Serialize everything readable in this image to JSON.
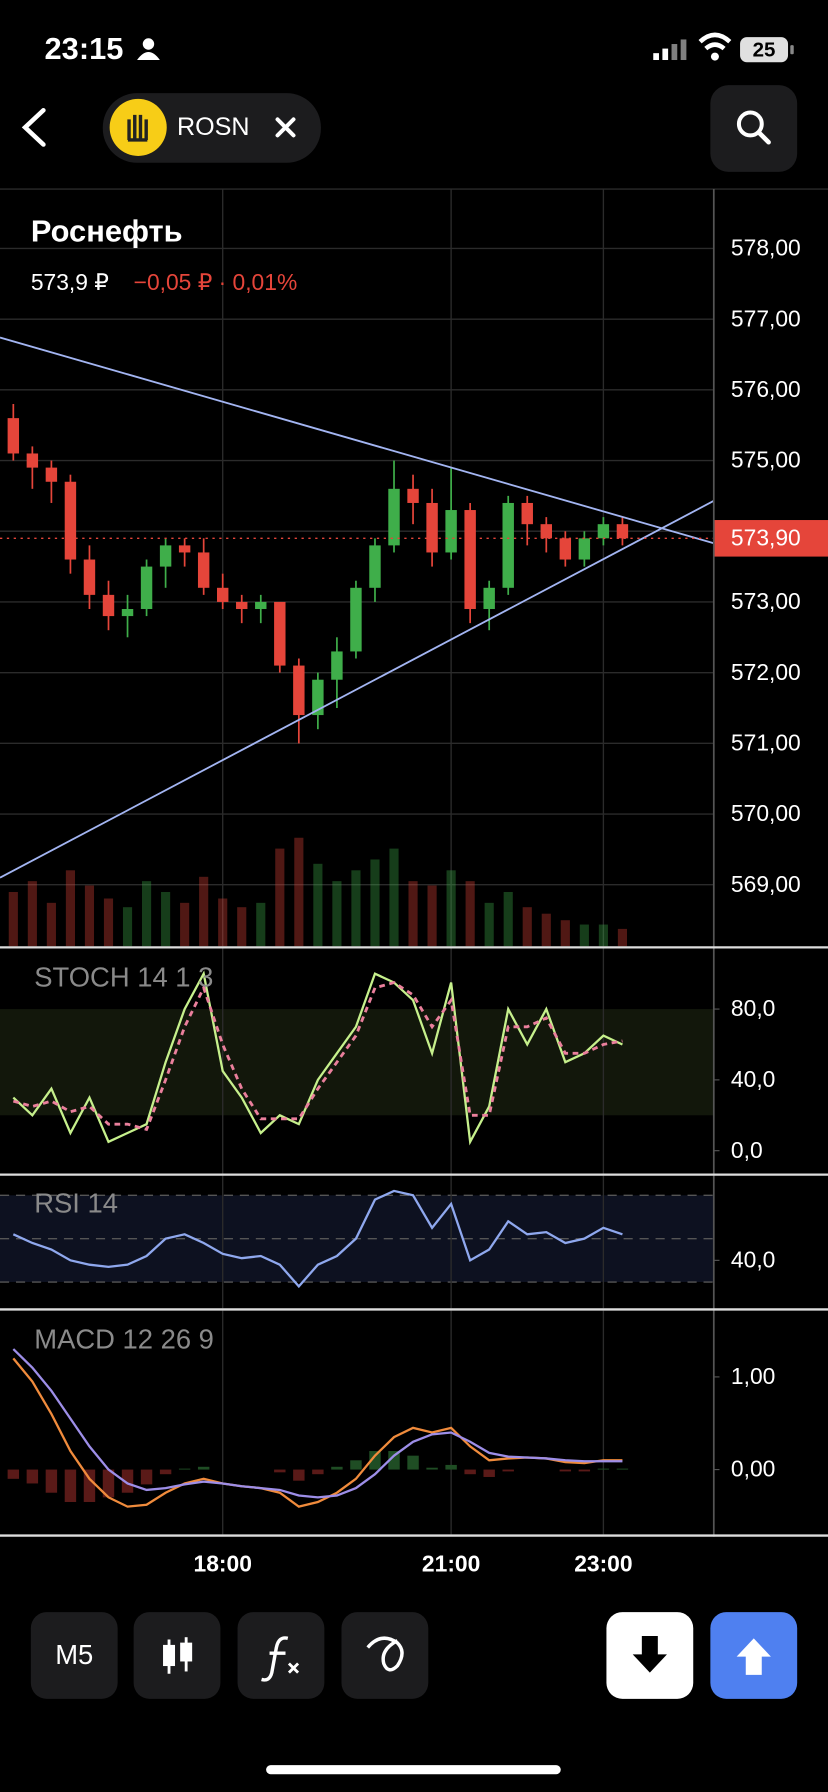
{
  "status_bar": {
    "time": "23:15",
    "battery": "25"
  },
  "header": {
    "ticker": "ROSN"
  },
  "chart_data": [
    {
      "type": "candlestick",
      "title": "Роснефть",
      "price_text": "573,9 ₽",
      "change_text": "−0,05 ₽ · 0,01%",
      "x": [
        15.25,
        15.5,
        15.75,
        16,
        16.25,
        16.5,
        16.75,
        17,
        17.25,
        17.5,
        17.75,
        18,
        18.25,
        18.5,
        18.75,
        19,
        19.25,
        19.5,
        19.75,
        20,
        20.25,
        20.5,
        20.75,
        21,
        21.25,
        21.5,
        21.75,
        22,
        22.25,
        22.5,
        22.75,
        23,
        23.25
      ],
      "open": [
        575.6,
        575.1,
        574.9,
        574.7,
        573.6,
        573.1,
        572.8,
        572.9,
        573.5,
        573.8,
        573.7,
        573.2,
        573.0,
        572.9,
        573.0,
        572.1,
        571.4,
        571.9,
        572.3,
        573.2,
        573.8,
        574.6,
        574.4,
        573.7,
        574.3,
        572.9,
        573.2,
        574.4,
        574.1,
        573.9,
        573.6,
        573.9,
        574.1
      ],
      "high": [
        575.8,
        575.2,
        575.0,
        574.8,
        573.8,
        573.3,
        573.1,
        573.6,
        573.9,
        573.9,
        573.9,
        573.4,
        573.1,
        573.1,
        573.0,
        572.2,
        572.0,
        572.5,
        573.3,
        573.9,
        575.0,
        574.8,
        574.6,
        574.9,
        574.4,
        573.3,
        574.5,
        574.5,
        574.2,
        574.0,
        574.0,
        574.2,
        574.2
      ],
      "low": [
        575.0,
        574.6,
        574.4,
        573.4,
        572.9,
        572.6,
        572.5,
        572.8,
        573.2,
        573.5,
        573.1,
        572.9,
        572.7,
        572.7,
        572.0,
        571.0,
        571.2,
        571.5,
        572.2,
        573.0,
        573.7,
        574.1,
        573.5,
        573.6,
        572.7,
        572.6,
        573.1,
        573.8,
        573.7,
        573.5,
        573.5,
        573.8,
        573.8
      ],
      "close": [
        575.1,
        574.9,
        574.7,
        573.6,
        573.1,
        572.8,
        572.9,
        573.5,
        573.8,
        573.7,
        573.2,
        573.0,
        572.9,
        573.0,
        572.1,
        571.4,
        571.9,
        572.3,
        573.2,
        573.8,
        574.6,
        574.4,
        573.7,
        574.3,
        572.9,
        573.2,
        574.4,
        574.1,
        573.9,
        573.6,
        573.9,
        574.1,
        573.9
      ],
      "volume": [
        25,
        30,
        20,
        35,
        28,
        22,
        18,
        30,
        25,
        20,
        32,
        22,
        18,
        20,
        45,
        50,
        38,
        30,
        35,
        40,
        45,
        30,
        28,
        35,
        30,
        20,
        25,
        18,
        15,
        12,
        10,
        10,
        8
      ],
      "up_color": "#3fae4a",
      "down_color": "#e5453a",
      "xlim": [
        15.075,
        24.45
      ],
      "ylim": [
        568.13,
        578.84
      ],
      "yticks": [
        {
          "value": 569,
          "label": "569,00"
        },
        {
          "value": 570,
          "label": "570,00"
        },
        {
          "value": 571,
          "label": "571,00"
        },
        {
          "value": 572,
          "label": "572,00"
        },
        {
          "value": 573,
          "label": "573,00"
        },
        {
          "value": 574,
          "label": "574,00"
        },
        {
          "value": 575,
          "label": "575,00"
        },
        {
          "value": 576,
          "label": "576,00"
        },
        {
          "value": 577,
          "label": "577,00"
        },
        {
          "value": 578,
          "label": "578,00"
        }
      ],
      "last_price": {
        "value": 573.9,
        "label": "573,90"
      },
      "trendlines": [
        {
          "color": "#a3b5f2",
          "x": [
            15.075,
            24.45
          ],
          "values": [
            576.74,
            573.83
          ]
        },
        {
          "color": "#a3b5f2",
          "x": [
            15.075,
            24.45
          ],
          "values": [
            569.1,
            574.43
          ]
        }
      ],
      "grid": true
    },
    {
      "type": "line",
      "title": "STOCH 14 1 3",
      "x": [
        15.25,
        15.5,
        15.75,
        16,
        16.25,
        16.5,
        16.75,
        17,
        17.25,
        17.5,
        17.75,
        18,
        18.25,
        18.5,
        18.75,
        19,
        19.25,
        19.5,
        19.75,
        20,
        20.25,
        20.5,
        20.75,
        21,
        21.25,
        21.5,
        21.75,
        22,
        22.25,
        22.5,
        22.75,
        23,
        23.25
      ],
      "series": [
        {
          "color": "#c6f08c",
          "values": [
            30,
            20,
            35,
            10,
            30,
            5,
            10,
            15,
            50,
            80,
            100,
            45,
            30,
            10,
            20,
            15,
            40,
            55,
            70,
            100,
            95,
            85,
            55,
            95,
            5,
            25,
            80,
            60,
            80,
            50,
            55,
            65,
            60
          ]
        },
        {
          "color": "#ea7f9c",
          "dash": true,
          "values": [
            28,
            25,
            28,
            22,
            25,
            15,
            15,
            12,
            40,
            70,
            92,
            60,
            35,
            18,
            18,
            18,
            35,
            50,
            65,
            92,
            95,
            88,
            70,
            85,
            20,
            20,
            70,
            70,
            75,
            55,
            55,
            60,
            62
          ]
        }
      ],
      "band": [
        20,
        80
      ],
      "band_color": "#12170b",
      "xlim": [
        15.075,
        24.45
      ],
      "ylim": [
        -12.9,
        114.2
      ],
      "yticks": [
        {
          "value": 0,
          "label": "0,0"
        },
        {
          "value": 40,
          "label": "40,0"
        },
        {
          "value": 80,
          "label": "80,0"
        }
      ]
    },
    {
      "type": "line",
      "title": "RSI 14",
      "x": [
        15.25,
        15.5,
        15.75,
        16,
        16.25,
        16.5,
        16.75,
        17,
        17.25,
        17.5,
        17.75,
        18,
        18.25,
        18.5,
        18.75,
        19,
        19.25,
        19.5,
        19.75,
        20,
        20.25,
        20.5,
        20.75,
        21,
        21.25,
        21.5,
        21.75,
        22,
        22.25,
        22.5,
        22.75,
        23,
        23.25
      ],
      "series": [
        {
          "color": "#8fa8ee",
          "values": [
            52,
            48,
            45,
            40,
            38,
            37,
            38,
            42,
            50,
            52,
            48,
            43,
            41,
            42,
            38,
            28,
            38,
            42,
            50,
            68,
            72,
            70,
            55,
            66,
            40,
            45,
            58,
            52,
            53,
            48,
            50,
            55,
            52
          ]
        }
      ],
      "band": [
        30,
        70
      ],
      "band_color": "#0d1120",
      "levels": [
        30,
        50,
        70
      ],
      "xlim": [
        15.075,
        24.45
      ],
      "ylim": [
        17.9,
        79.5
      ],
      "yticks": [
        {
          "value": 40,
          "label": "40,0"
        }
      ]
    },
    {
      "type": "line",
      "title": "MACD 12 26 9",
      "x": [
        15.25,
        15.5,
        15.75,
        16,
        16.25,
        16.5,
        16.75,
        17,
        17.25,
        17.5,
        17.75,
        18,
        18.25,
        18.5,
        18.75,
        19,
        19.25,
        19.5,
        19.75,
        20,
        20.25,
        20.5,
        20.75,
        21,
        21.25,
        21.5,
        21.75,
        22,
        22.25,
        22.5,
        22.75,
        23,
        23.25
      ],
      "series": [
        {
          "color": "#f08b3c",
          "values": [
            1.2,
            0.95,
            0.6,
            0.2,
            -0.1,
            -0.3,
            -0.4,
            -0.38,
            -0.25,
            -0.15,
            -0.1,
            -0.15,
            -0.18,
            -0.2,
            -0.25,
            -0.4,
            -0.35,
            -0.25,
            -0.1,
            0.15,
            0.35,
            0.45,
            0.4,
            0.45,
            0.25,
            0.1,
            0.12,
            0.13,
            0.12,
            0.08,
            0.07,
            0.1,
            0.1
          ]
        },
        {
          "color": "#9d8ee8",
          "values": [
            1.3,
            1.1,
            0.85,
            0.55,
            0.25,
            0.0,
            -0.15,
            -0.22,
            -0.2,
            -0.16,
            -0.13,
            -0.15,
            -0.18,
            -0.2,
            -0.22,
            -0.28,
            -0.3,
            -0.28,
            -0.2,
            -0.05,
            0.15,
            0.3,
            0.38,
            0.4,
            0.3,
            0.18,
            0.14,
            0.13,
            0.12,
            0.1,
            0.09,
            0.09,
            0.09
          ]
        }
      ],
      "histogram": {
        "up_color": "#1f4d24",
        "down_color": "#5a1a18",
        "values": [
          -0.1,
          -0.15,
          -0.25,
          -0.35,
          -0.35,
          -0.3,
          -0.25,
          -0.16,
          -0.05,
          0.01,
          0.03,
          0,
          0,
          0,
          -0.03,
          -0.12,
          -0.05,
          0.03,
          0.1,
          0.2,
          0.2,
          0.15,
          0.02,
          0.05,
          -0.05,
          -0.08,
          -0.02,
          0,
          0,
          -0.02,
          -0.02,
          0.01,
          0.01
        ]
      },
      "xlim": [
        15.075,
        24.45
      ],
      "ylim": [
        -0.7,
        1.716
      ],
      "yticks": [
        {
          "value": 0,
          "label": "0,00"
        },
        {
          "value": 1,
          "label": "1,00"
        }
      ],
      "xticks": [
        {
          "value": 18,
          "label": "18:00"
        },
        {
          "value": 21,
          "label": "21:00"
        },
        {
          "value": 23,
          "label": "23:00"
        }
      ]
    }
  ],
  "toolbar": {
    "timeframe": "M5"
  }
}
